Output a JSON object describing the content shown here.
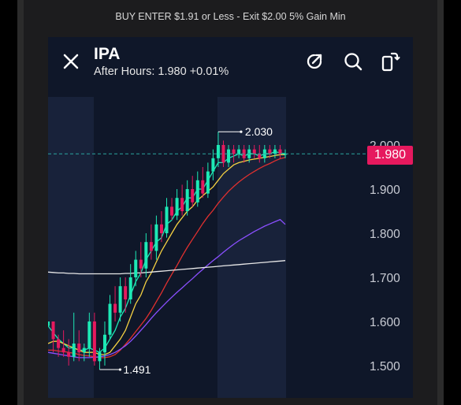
{
  "caption": "BUY ENTER $1.91 or Less - Exit $2.00 5% Gain Min",
  "header": {
    "ticker": "IPA",
    "after_hours_label": "After Hours:",
    "after_hours_price": "1.980",
    "after_hours_change": "+0.01%"
  },
  "icons": [
    "close-icon",
    "share-icon",
    "search-icon",
    "fullscreen-icon"
  ],
  "colors": {
    "background": "#0f1729",
    "up": "#1de9b6",
    "down": "#e6195e",
    "current_price": "#e6195e"
  },
  "chart_data": {
    "type": "candlestick",
    "title": "",
    "xlabel": "",
    "ylabel": "",
    "ylim": [
      1.47,
      2.05
    ],
    "y_ticks": [
      "2.000",
      "1.900",
      "1.800",
      "1.700",
      "1.600",
      "1.500"
    ],
    "high_label": "2.030",
    "low_label": "1.491",
    "current_price": "1.980",
    "candles": [
      [
        1.59,
        1.6,
        1.59,
        1.6
      ],
      [
        1.6,
        1.6,
        1.53,
        1.56
      ],
      [
        1.56,
        1.57,
        1.52,
        1.54
      ],
      [
        1.54,
        1.58,
        1.52,
        1.53
      ],
      [
        1.53,
        1.56,
        1.5,
        1.52
      ],
      [
        1.52,
        1.62,
        1.51,
        1.55
      ],
      [
        1.55,
        1.58,
        1.51,
        1.53
      ],
      [
        1.53,
        1.55,
        1.51,
        1.54
      ],
      [
        1.54,
        1.62,
        1.52,
        1.6
      ],
      [
        1.6,
        1.62,
        1.5,
        1.51
      ],
      [
        1.51,
        1.54,
        1.491,
        1.53
      ],
      [
        1.53,
        1.6,
        1.5,
        1.57
      ],
      [
        1.57,
        1.66,
        1.56,
        1.64
      ],
      [
        1.64,
        1.68,
        1.6,
        1.62
      ],
      [
        1.62,
        1.7,
        1.6,
        1.68
      ],
      [
        1.68,
        1.7,
        1.62,
        1.65
      ],
      [
        1.65,
        1.73,
        1.64,
        1.7
      ],
      [
        1.7,
        1.76,
        1.68,
        1.74
      ],
      [
        1.74,
        1.78,
        1.7,
        1.72
      ],
      [
        1.72,
        1.8,
        1.7,
        1.78
      ],
      [
        1.78,
        1.82,
        1.74,
        1.76
      ],
      [
        1.76,
        1.84,
        1.74,
        1.82
      ],
      [
        1.82,
        1.85,
        1.78,
        1.8
      ],
      [
        1.8,
        1.88,
        1.79,
        1.86
      ],
      [
        1.86,
        1.88,
        1.83,
        1.84
      ],
      [
        1.84,
        1.9,
        1.83,
        1.88
      ],
      [
        1.88,
        1.91,
        1.84,
        1.85
      ],
      [
        1.85,
        1.92,
        1.84,
        1.9
      ],
      [
        1.9,
        1.93,
        1.86,
        1.87
      ],
      [
        1.87,
        1.94,
        1.86,
        1.92
      ],
      [
        1.92,
        1.95,
        1.88,
        1.89
      ],
      [
        1.89,
        1.96,
        1.88,
        1.94
      ],
      [
        1.94,
        1.99,
        1.92,
        1.97
      ],
      [
        1.97,
        2.03,
        1.95,
        2.0
      ],
      [
        2.0,
        2.01,
        1.95,
        1.96
      ],
      [
        1.96,
        2.0,
        1.95,
        1.99
      ],
      [
        1.99,
        2.0,
        1.96,
        1.98
      ],
      [
        1.98,
        2.0,
        1.97,
        1.99
      ],
      [
        1.99,
        2.0,
        1.96,
        1.97
      ],
      [
        1.97,
        2.0,
        1.96,
        1.99
      ],
      [
        1.99,
        2.0,
        1.97,
        1.98
      ],
      [
        1.98,
        2.0,
        1.96,
        1.97
      ],
      [
        1.97,
        2.0,
        1.96,
        1.99
      ],
      [
        1.99,
        2.0,
        1.97,
        1.98
      ],
      [
        1.98,
        2.0,
        1.97,
        1.99
      ],
      [
        1.99,
        2.0,
        1.97,
        1.98
      ],
      [
        1.98,
        1.99,
        1.97,
        1.98
      ]
    ],
    "series": [
      {
        "color": "#1de9b6",
        "values": [
          1.59,
          1.575,
          1.56,
          1.55,
          1.54,
          1.54,
          1.535,
          1.535,
          1.54,
          1.535,
          1.53,
          1.54,
          1.56,
          1.58,
          1.61,
          1.63,
          1.66,
          1.69,
          1.71,
          1.74,
          1.76,
          1.78,
          1.79,
          1.82,
          1.83,
          1.85,
          1.86,
          1.88,
          1.88,
          1.9,
          1.9,
          1.92,
          1.94,
          1.96,
          1.96,
          1.97,
          1.975,
          1.98,
          1.975,
          1.98,
          1.98,
          1.975,
          1.98,
          1.98,
          1.985,
          1.982,
          1.98
        ]
      },
      {
        "color": "#f5d142",
        "values": [
          1.55,
          1.555,
          1.555,
          1.55,
          1.545,
          1.54,
          1.535,
          1.53,
          1.53,
          1.53,
          1.525,
          1.525,
          1.53,
          1.545,
          1.56,
          1.58,
          1.61,
          1.64,
          1.66,
          1.69,
          1.71,
          1.735,
          1.76,
          1.78,
          1.8,
          1.82,
          1.835,
          1.85,
          1.86,
          1.875,
          1.885,
          1.895,
          1.905,
          1.92,
          1.935,
          1.945,
          1.955,
          1.96,
          1.963,
          1.966,
          1.968,
          1.97,
          1.972,
          1.974,
          1.976,
          1.978,
          1.978
        ]
      },
      {
        "color": "#e0302f",
        "values": [
          1.535,
          1.535,
          1.533,
          1.532,
          1.53,
          1.528,
          1.525,
          1.523,
          1.522,
          1.52,
          1.518,
          1.518,
          1.52,
          1.525,
          1.535,
          1.548,
          1.562,
          1.577,
          1.592,
          1.607,
          1.625,
          1.645,
          1.665,
          1.687,
          1.707,
          1.727,
          1.748,
          1.768,
          1.786,
          1.804,
          1.822,
          1.838,
          1.852,
          1.868,
          1.882,
          1.895,
          1.906,
          1.916,
          1.925,
          1.933,
          1.94,
          1.947,
          1.953,
          1.958,
          1.964,
          1.969,
          1.972
        ]
      },
      {
        "color": "#8a4fff",
        "values": [
          1.53,
          1.528,
          1.526,
          1.524,
          1.522,
          1.52,
          1.518,
          1.518,
          1.518,
          1.519,
          1.52,
          1.522,
          1.525,
          1.53,
          1.537,
          1.545,
          1.555,
          1.567,
          1.58,
          1.593,
          1.607,
          1.62,
          1.632,
          1.644,
          1.655,
          1.666,
          1.676,
          1.687,
          1.697,
          1.708,
          1.718,
          1.728,
          1.738,
          1.747,
          1.757,
          1.766,
          1.775,
          1.783,
          1.79,
          1.797,
          1.804,
          1.81,
          1.816,
          1.821,
          1.826,
          1.831,
          1.82
        ]
      },
      {
        "color": "#e8e8e8",
        "values": [
          1.712,
          1.711,
          1.71,
          1.71,
          1.709,
          1.709,
          1.708,
          1.708,
          1.708,
          1.708,
          1.708,
          1.708,
          1.708,
          1.708,
          1.708,
          1.709,
          1.709,
          1.71,
          1.71,
          1.711,
          1.712,
          1.713,
          1.714,
          1.715,
          1.716,
          1.717,
          1.718,
          1.719,
          1.72,
          1.721,
          1.722,
          1.723,
          1.724,
          1.725,
          1.726,
          1.727,
          1.728,
          1.729,
          1.73,
          1.731,
          1.732,
          1.733,
          1.734,
          1.735,
          1.736,
          1.737,
          1.738
        ]
      }
    ]
  }
}
